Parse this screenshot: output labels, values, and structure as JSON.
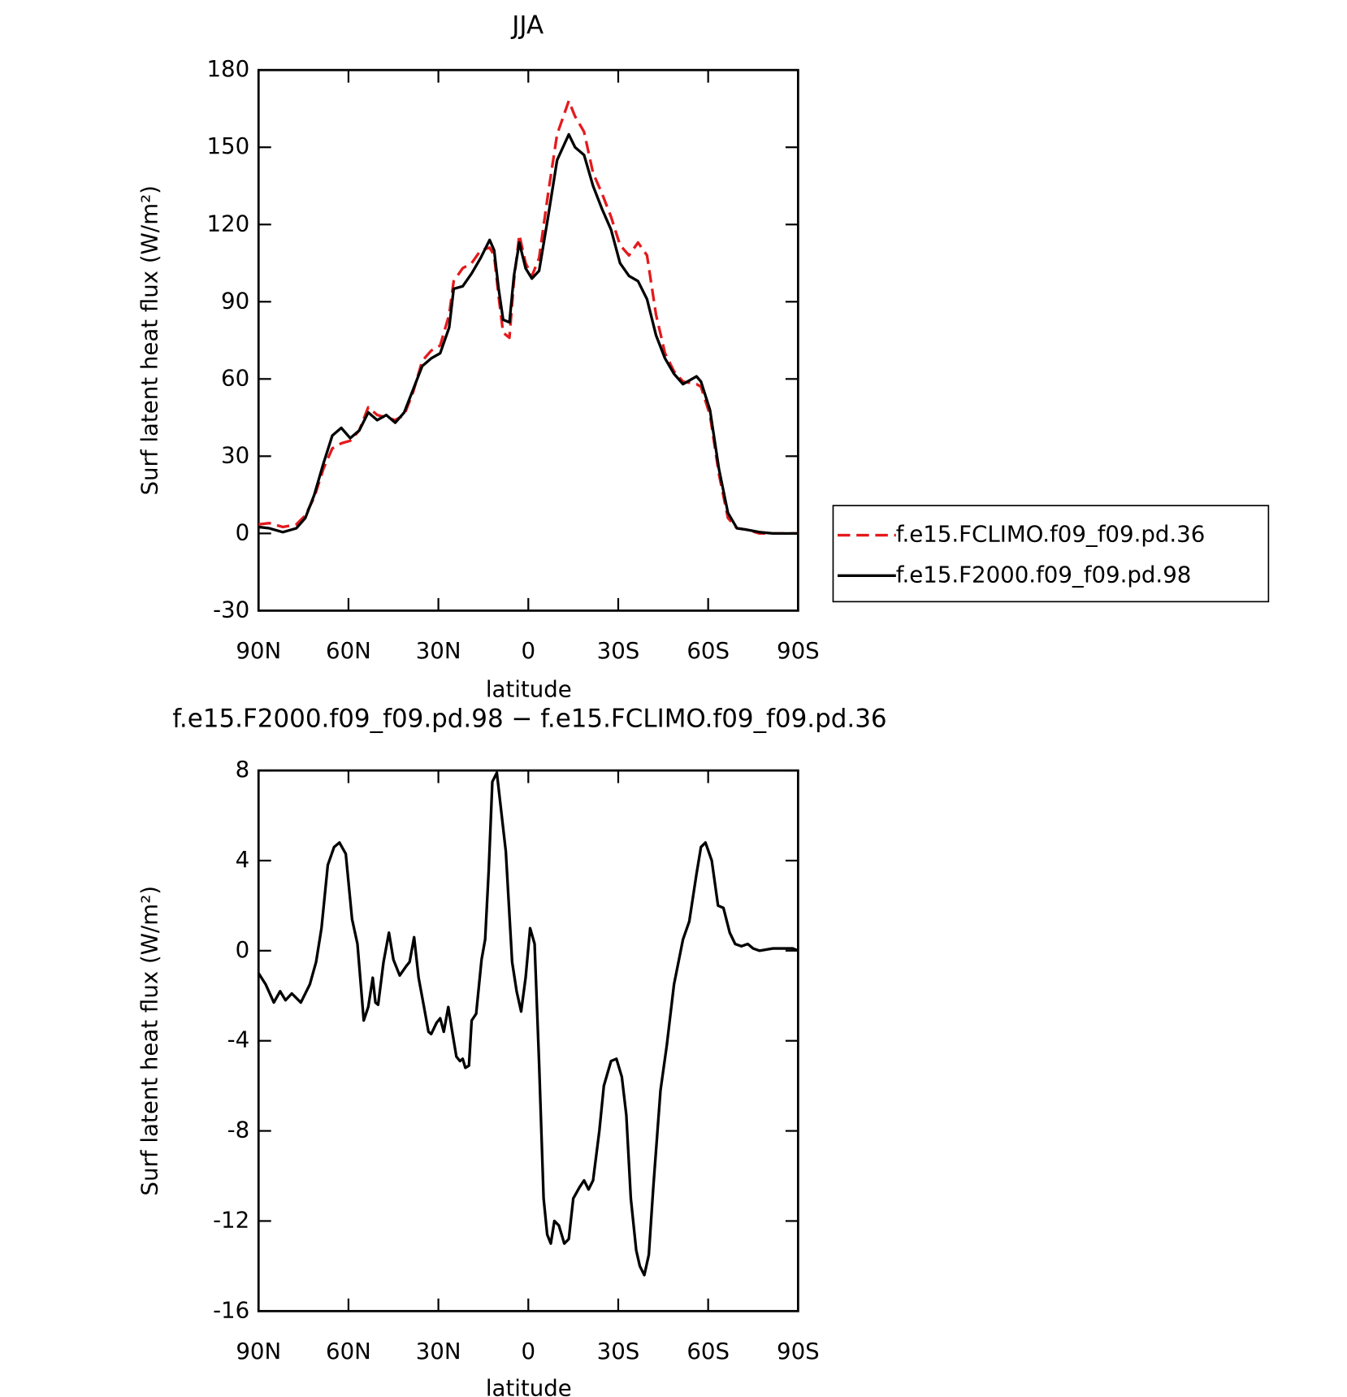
{
  "chart_data": [
    {
      "type": "line",
      "title": "JJA",
      "xlabel": "latitude",
      "ylabel": "Surf latent heat flux (W/m²)",
      "xlim": [
        90,
        -90
      ],
      "ylim": [
        -30,
        180
      ],
      "xticks": [
        {
          "value": 90,
          "label": "90N"
        },
        {
          "value": 60,
          "label": "60N"
        },
        {
          "value": 30,
          "label": "30N"
        },
        0,
        {
          "value": -30,
          "label": "30S"
        },
        {
          "value": -60,
          "label": "60S"
        },
        {
          "value": -90,
          "label": "90S"
        }
      ],
      "yticks": [
        -30,
        0,
        30,
        60,
        90,
        120,
        150,
        180
      ],
      "legend": "right",
      "x": [
        90,
        86.4,
        81.9,
        77.4,
        74.4,
        71.4,
        68.4,
        65.4,
        62.4,
        59.4,
        56.4,
        53.4,
        50.4,
        47.4,
        44.4,
        41.4,
        38.4,
        35.4,
        32.4,
        29.4,
        26.4,
        24.9,
        21.9,
        18.9,
        15.9,
        12.9,
        11.4,
        9.9,
        8.4,
        6.3,
        4.8,
        3,
        0.9,
        -1.2,
        -3.6,
        -6.6,
        -9.6,
        -13.5,
        -15.6,
        -18.6,
        -21.6,
        -24.6,
        -27.6,
        -30.6,
        -33.6,
        -36.6,
        -39.6,
        -42.6,
        -45.6,
        -48.6,
        -51.6,
        -56.1,
        -57.6,
        -60.6,
        -63.6,
        -66.6,
        -69.6,
        -72.6,
        -77.1,
        -81.6,
        -90
      ],
      "series": [
        {
          "name": "f.e15.FCLIMO.f09_f09.pd.36",
          "color": "#e41a1c",
          "dash": true,
          "values": [
            3.5,
            4,
            2.5,
            3.5,
            7,
            14,
            25,
            33,
            35,
            36,
            40,
            49,
            46,
            45,
            44,
            46,
            55,
            67,
            71,
            73,
            85,
            98,
            103,
            105,
            110,
            111,
            108,
            92,
            78,
            76,
            98,
            116,
            105,
            100,
            107,
            132,
            155,
            168,
            162,
            156,
            140,
            132,
            123,
            112,
            108,
            113,
            108,
            85,
            70,
            63,
            59,
            58,
            57,
            46,
            23,
            6,
            2,
            1.5,
            0,
            0,
            0
          ]
        },
        {
          "name": "f.e15.F2000.f09_f09.pd.98",
          "color": "#000000",
          "dash": false,
          "values": [
            2.5,
            2,
            0.5,
            2,
            6,
            15,
            27,
            38,
            41,
            37,
            40,
            47,
            44,
            46,
            43,
            47,
            56,
            65,
            68,
            70,
            80,
            95,
            96,
            101,
            107,
            114,
            110,
            95,
            83,
            82,
            100,
            113,
            103,
            99,
            102,
            123,
            145,
            155,
            150,
            147,
            135,
            126,
            118,
            105,
            100,
            98,
            91,
            77,
            68,
            62,
            58,
            61,
            59,
            48,
            25,
            8,
            2,
            1.5,
            0.5,
            0,
            0
          ]
        }
      ]
    },
    {
      "type": "line",
      "title": "f.e15.F2000.f09_f09.pd.98 − f.e15.FCLIMO.f09_f09.pd.36",
      "xlabel": "latitude",
      "ylabel": "Surf latent heat flux (W/m²)",
      "xlim": [
        90,
        -90
      ],
      "ylim": [
        -16,
        8
      ],
      "xticks": [
        {
          "value": 90,
          "label": "90N"
        },
        {
          "value": 60,
          "label": "60N"
        },
        {
          "value": 30,
          "label": "30N"
        },
        0,
        {
          "value": -30,
          "label": "30S"
        },
        {
          "value": -60,
          "label": "60S"
        },
        {
          "value": -90,
          "label": "90S"
        }
      ],
      "yticks": [
        -16,
        -12,
        -8,
        -4,
        0,
        4,
        8
      ],
      "x": [
        90,
        87.6,
        84.9,
        82.8,
        81,
        78.9,
        75.9,
        72.9,
        70.8,
        69,
        66.9,
        64.8,
        63,
        60.9,
        58.8,
        57,
        54.9,
        53.4,
        51.9,
        51,
        50.1,
        48.3,
        46.5,
        45,
        42.9,
        40.8,
        39.6,
        38.1,
        36.6,
        34.8,
        33.3,
        32.4,
        30.6,
        29.4,
        28.2,
        26.7,
        25.5,
        24,
        22.8,
        21.9,
        21,
        19.8,
        18.9,
        17.4,
        15.6,
        14.4,
        13.2,
        12,
        10.5,
        9.3,
        7.5,
        5.4,
        3.9,
        2.4,
        0.9,
        -0.6,
        -2.1,
        -3.6,
        -5.1,
        -6.3,
        -7.5,
        -8.7,
        -10.2,
        -12,
        -13.5,
        -15,
        -17.1,
        -18.6,
        -20.1,
        -21.6,
        -23.7,
        -25.2,
        -27.6,
        -29.4,
        -31.2,
        -32.7,
        -34.2,
        -36,
        -37.2,
        -38.7,
        -40.2,
        -41.7,
        -44.1,
        -46.2,
        -48.6,
        -51.6,
        -53.7,
        -56.1,
        -57.6,
        -59.1,
        -61.2,
        -63.3,
        -65.1,
        -67.2,
        -69,
        -71.1,
        -73.2,
        -75,
        -77.1,
        -81.6,
        -86.1,
        -88.2,
        -90
      ],
      "series": [
        {
          "color": "#000000",
          "values": [
            -1,
            -1.5,
            -2.3,
            -1.8,
            -2.2,
            -1.9,
            -2.3,
            -1.5,
            -0.5,
            1,
            3.8,
            4.6,
            4.8,
            4.3,
            1.4,
            0.3,
            -3.1,
            -2.5,
            -1.2,
            -2.3,
            -2.4,
            -0.5,
            0.8,
            -0.4,
            -1.1,
            -0.7,
            -0.5,
            0.6,
            -1.2,
            -2.5,
            -3.6,
            -3.7,
            -3.2,
            -3,
            -3.6,
            -2.5,
            -3.5,
            -4.7,
            -4.9,
            -4.8,
            -5.2,
            -5.1,
            -3.1,
            -2.8,
            -0.4,
            0.5,
            3.6,
            7.5,
            7.9,
            6.5,
            4.4,
            -0.5,
            -1.8,
            -2.7,
            -1.2,
            1,
            0.3,
            -5,
            -11,
            -12.6,
            -13,
            -12,
            -12.2,
            -13,
            -12.8,
            -11,
            -10.5,
            -10.2,
            -10.6,
            -10.2,
            -8,
            -6,
            -4.9,
            -4.8,
            -5.6,
            -7.3,
            -11,
            -13.3,
            -14,
            -14.4,
            -13.5,
            -10.5,
            -6.2,
            -4.2,
            -1.5,
            0.5,
            1.3,
            3.4,
            4.6,
            4.8,
            4,
            2,
            1.9,
            0.8,
            0.3,
            0.2,
            0.3,
            0.1,
            0,
            0.1,
            0.1,
            0.1,
            0
          ]
        }
      ]
    }
  ]
}
